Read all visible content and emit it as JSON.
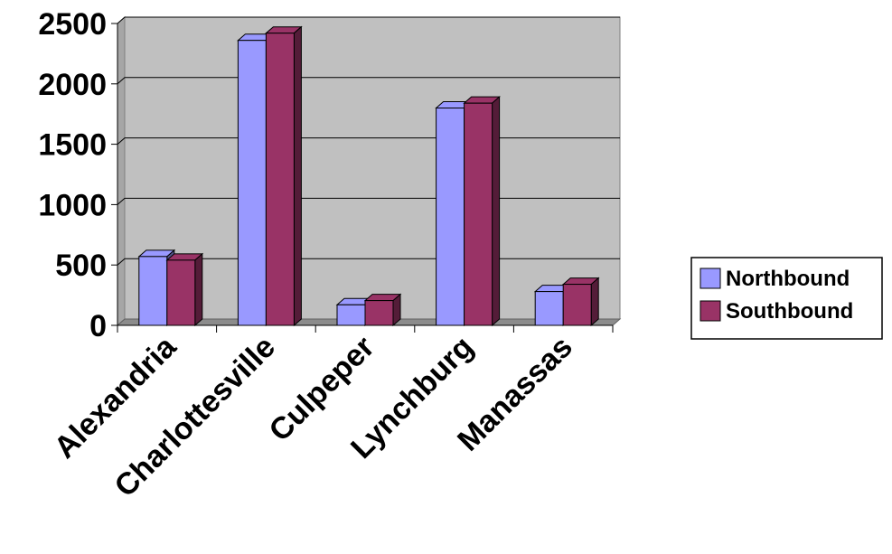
{
  "chart_data": {
    "type": "bar",
    "categories": [
      "Alexandria",
      "Charlottesville",
      "Culpeper",
      "Lynchburg",
      "Manassas"
    ],
    "series": [
      {
        "name": "Northbound",
        "values": [
          570,
          2360,
          170,
          1800,
          280
        ],
        "color": "#9999ff"
      },
      {
        "name": "Southbound",
        "values": [
          540,
          2420,
          205,
          1840,
          340
        ],
        "color": "#993366"
      }
    ],
    "y_ticks": [
      0,
      500,
      1000,
      1500,
      2000,
      2500
    ],
    "ylim": [
      0,
      2500
    ],
    "grid": true,
    "legend_position": "right",
    "plot_background": "#c0c0c0",
    "style": "3d-clustered-column"
  }
}
